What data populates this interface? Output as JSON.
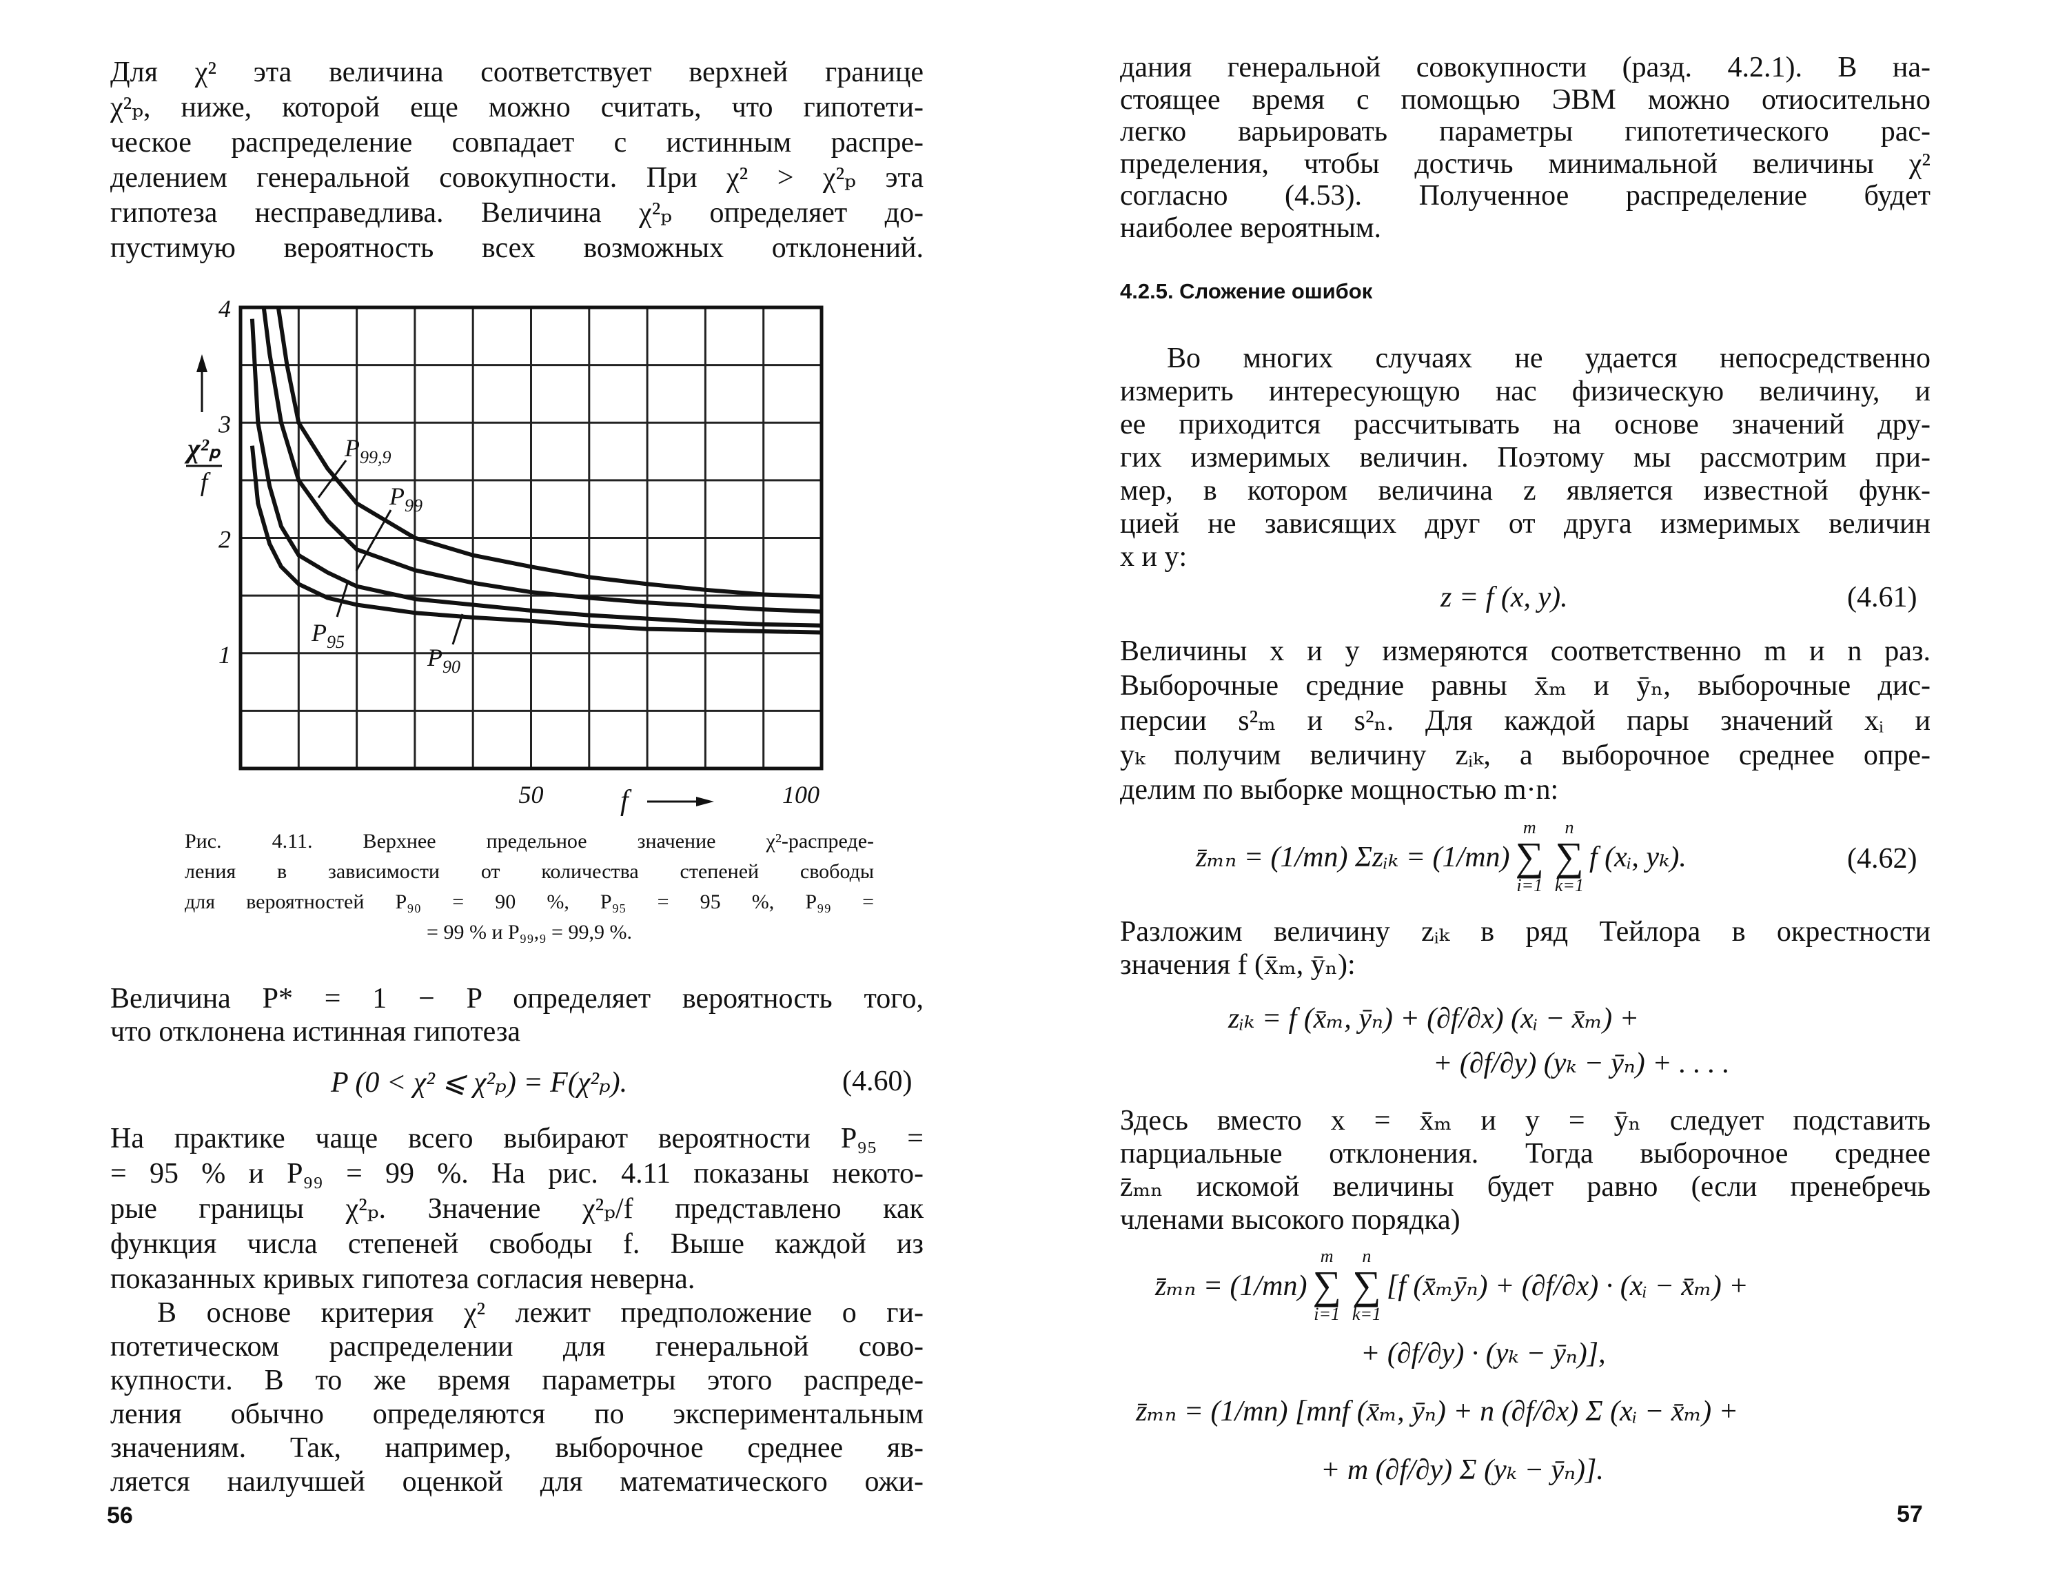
{
  "left_page": {
    "paragraph1": [
      "Для χ² эта величина соответствует верхней границе",
      "χ²ₚ,  ниже, которой еще можно считать, что гипотети-",
      "ческое распределение совпадает с истинным распре-",
      "делением генеральной совокупности. При χ² > χ²ₚ  эта",
      "гипотеза несправедлива. Величина χ²ₚ определяет до-",
      "пустимую вероятность всех возможных отклонений."
    ],
    "caption": [
      "Рис. 4.11. Верхнее предельное значение χ²-распреде-",
      "ления в зависимости от количества степеней свободы",
      "для  вероятностей  P₉₀ = 90 %,  P₉₅ = 95 %,  P₉₉ =",
      "= 99 %  и  P₉₉,₉ = 99,9 %."
    ],
    "paragraph2": [
      "Величина P* = 1 − P определяет вероятность того,",
      "что отклонена истинная гипотеза"
    ],
    "eq_4_60": {
      "formula": "P (0 < χ² ⩽ χ²ₚ) = F(χ²ₚ).",
      "number": "(4.60)"
    },
    "paragraph3": [
      "На практике чаще всего выбирают вероятности P₉₅ =",
      "= 95 % и P₉₉ = 99 %. На рис. 4.11 показаны некото-",
      "рые  границы  χ²ₚ. Значение χ²ₚ/f  представлено как",
      "функция числа степеней свободы f. Выше каждой из",
      "показанных кривых гипотеза согласия неверна."
    ],
    "paragraph4": [
      "В основе критерия χ² лежит предположение о ги-",
      "потетическом распределении для генеральной сово-",
      "купности. В то же время параметры этого распреде-",
      "ления обычно определяются по экспериментальным",
      "значениям. Так, например, выборочное среднее яв-",
      "ляется наилучшей оценкой для математического ожи-"
    ],
    "page_number": "56"
  },
  "right_page": {
    "paragraph1": [
      "дания генеральной совокупности (разд. 4.2.1). В на-",
      "стоящее время с помощью ЭВМ можно отиосительно",
      "легко варьировать параметры гипотетического рас-",
      "пределения, чтобы достичь минимальной величины χ²",
      "согласно (4.53). Полученное распределение будет",
      "наиболее вероятным."
    ],
    "heading": "4.2.5. Сложение ошибок",
    "paragraph2": [
      "Во многих случаях не удается непосредственно",
      "измерить интересующую нас физическую величину, и",
      "ее приходится рассчитывать на основе значений дру-",
      "гих измеримых величин. Поэтому мы рассмотрим при-",
      "мер, в котором величина z является известной функ-",
      "цией не зависящих друг от друга измеримых величин",
      "x и y:"
    ],
    "eq_4_61": {
      "formula": "z = f (x, y).",
      "number": "(4.61)"
    },
    "paragraph3": [
      "Величины x и y измеряются соответственно m и n раз.",
      "Выборочные средние равны x̄ₘ и ȳₙ, выборочные дис-",
      "персии  s²ₘ  и  s²ₙ.  Для каждой пары значений xᵢ и",
      "yₖ получим величину zᵢₖ, а выборочное среднее опре-",
      "делим по выборке мощностью m·n:"
    ],
    "eq_4_62": {
      "lhs": "z̄ₘₙ = (1/mn) Σzᵢₖ = (1/mn)",
      "sum1": {
        "top": "m",
        "bottom": "i=1"
      },
      "sum2": {
        "top": "n",
        "bottom": "k=1"
      },
      "rhs": "f (xᵢ, yₖ).",
      "number": "(4.62)"
    },
    "paragraph4": [
      "Разложим величину zᵢₖ в ряд Тейлора в окрестности",
      "значения f (x̄ₘ, ȳₙ):"
    ],
    "eq_taylor": {
      "line1": "zᵢₖ = f (x̄ₘ, ȳₙ) + (∂f/∂x) (xᵢ − x̄ₘ) +",
      "line2": "+ (∂f/∂y) (yₖ − ȳₙ) + . . . ."
    },
    "paragraph5": [
      "Здесь вместо x = x̄ₘ и y = ȳₙ следует подставить",
      "парциальные отклонения. Тогда выборочное среднее",
      "z̄ₘₙ искомой величины будет равно (если пренебречь",
      "членами высокого порядка)"
    ],
    "eq_mean": {
      "line1_lhs": "z̄ₘₙ = (1/mn)",
      "sum1": {
        "top": "m",
        "bottom": "i=1"
      },
      "sum2": {
        "top": "n",
        "bottom": "k=1"
      },
      "line1_rhs": "[f (x̄ₘȳₙ) + (∂f/∂x) · (xᵢ − x̄ₘ) +",
      "line2": "+ (∂f/∂y) · (yₖ − ȳₙ)],",
      "line3": "z̄ₘₙ = (1/mn) [mnf (x̄ₘ, ȳₙ) + n (∂f/∂x) Σ (xᵢ − x̄ₘ) +",
      "line4": "+ m (∂f/∂y) Σ (yₖ − ȳₙ)]."
    },
    "page_number": "57"
  },
  "chart_data": {
    "type": "line",
    "title": "",
    "xlabel": "f",
    "ylabel": "χ²ₚ/f",
    "xlim": [
      0,
      100
    ],
    "ylim": [
      0,
      4
    ],
    "x_ticks": [
      50,
      100
    ],
    "x_tick_labels": [
      "50",
      "100"
    ],
    "y_ticks": [
      1,
      2,
      3,
      4
    ],
    "y_tick_labels": [
      "1",
      "2",
      "3",
      "4"
    ],
    "grid": true,
    "grid_x_step": 10,
    "grid_y_step": 0.5,
    "legend": "inline labels",
    "series": [
      {
        "name": "P99,9",
        "x": [
          6.5,
          8,
          10,
          15,
          20,
          30,
          40,
          50,
          60,
          70,
          80,
          90,
          100
        ],
        "y": [
          4.0,
          3.5,
          3.0,
          2.6,
          2.3,
          2.0,
          1.85,
          1.75,
          1.66,
          1.6,
          1.55,
          1.51,
          1.49
        ]
      },
      {
        "name": "P99",
        "x": [
          4,
          5,
          7,
          10,
          15,
          20,
          30,
          40,
          50,
          60,
          70,
          80,
          90,
          100
        ],
        "y": [
          4.0,
          3.6,
          3.0,
          2.5,
          2.15,
          1.9,
          1.72,
          1.61,
          1.53,
          1.48,
          1.44,
          1.41,
          1.38,
          1.36
        ]
      },
      {
        "name": "P95",
        "x": [
          2,
          3,
          5,
          7,
          10,
          15,
          20,
          30,
          40,
          50,
          60,
          70,
          80,
          90,
          100
        ],
        "y": [
          3.9,
          3.0,
          2.45,
          2.1,
          1.85,
          1.7,
          1.58,
          1.47,
          1.42,
          1.37,
          1.33,
          1.3,
          1.27,
          1.25,
          1.24
        ]
      },
      {
        "name": "P90",
        "x": [
          2,
          3,
          5,
          7,
          10,
          15,
          20,
          30,
          40,
          50,
          60,
          70,
          80,
          90,
          100
        ],
        "y": [
          2.8,
          2.3,
          1.95,
          1.75,
          1.6,
          1.48,
          1.42,
          1.35,
          1.31,
          1.28,
          1.24,
          1.21,
          1.2,
          1.19,
          1.18
        ]
      }
    ]
  }
}
